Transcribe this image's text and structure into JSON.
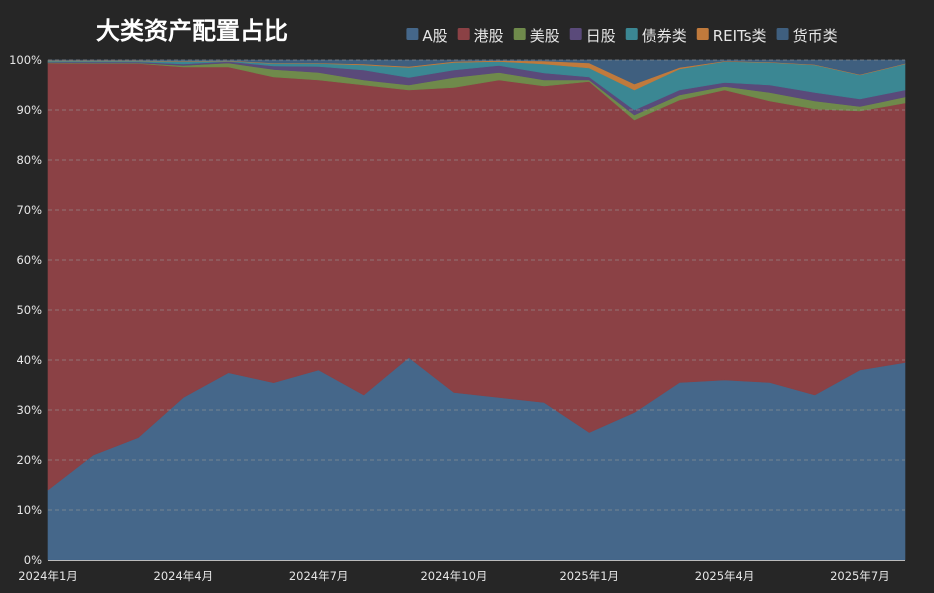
{
  "chart_data": {
    "type": "area",
    "stacked": true,
    "normalized": true,
    "title": "大类资产配置占比",
    "x": [
      "2024-01",
      "2024-02",
      "2024-03",
      "2024-04",
      "2024-05",
      "2024-06",
      "2024-07",
      "2024-08",
      "2024-09",
      "2024-10",
      "2024-11",
      "2024-12",
      "2025-01",
      "2025-02",
      "2025-03",
      "2025-04",
      "2025-05",
      "2025-06",
      "2025-07",
      "2025-08"
    ],
    "x_tick_labels": [
      {
        "x": "2024-01",
        "label": "2024年1月"
      },
      {
        "x": "2024-04",
        "label": "2024年4月"
      },
      {
        "x": "2024-07",
        "label": "2024年7月"
      },
      {
        "x": "2024-10",
        "label": "2024年10月"
      },
      {
        "x": "2025-01",
        "label": "2025年1月"
      },
      {
        "x": "2025-04",
        "label": "2025年4月"
      },
      {
        "x": "2025-07",
        "label": "2025年7月"
      }
    ],
    "y_ticks": [
      "0%",
      "10%",
      "20%",
      "30%",
      "40%",
      "50%",
      "60%",
      "70%",
      "80%",
      "90%",
      "100%"
    ],
    "ylim": [
      0,
      100
    ],
    "grid": true,
    "legend_position": "top",
    "series": [
      {
        "name": "A股",
        "color": "#45678a",
        "values": [
          14,
          21,
          24.5,
          32.5,
          37.5,
          35.5,
          38,
          33,
          40.5,
          33.5,
          32.5,
          31.5,
          25.5,
          29.5,
          35.5,
          36,
          35.5,
          33,
          38,
          39.5
        ]
      },
      {
        "name": "港股",
        "color": "#8b4145",
        "values": [
          85.4,
          78.4,
          74.9,
          66.1,
          61.2,
          61.2,
          58,
          62,
          53.5,
          61,
          63.5,
          63.3,
          70.2,
          58.5,
          56.5,
          58,
          56.3,
          57.2,
          51.8,
          51.9
        ]
      },
      {
        "name": "美股",
        "color": "#6f8a4b",
        "values": [
          0.1,
          0.1,
          0.1,
          0.3,
          0.8,
          1.5,
          1.5,
          1,
          1,
          2,
          1.5,
          1.2,
          0.3,
          1,
          1,
          0.7,
          1.7,
          1.6,
          0.9,
          1.2
        ]
      },
      {
        "name": "日股",
        "color": "#5a4a7a",
        "values": [
          0.1,
          0.2,
          0.2,
          0.3,
          0.3,
          0.7,
          1.2,
          2,
          1.5,
          1.5,
          1.4,
          1.4,
          0.6,
          1,
          1,
          0.8,
          1.5,
          1.7,
          1.5,
          1.4
        ]
      },
      {
        "name": "债券类",
        "color": "#3b8793",
        "values": [
          0.2,
          0.2,
          0.2,
          0.5,
          0.1,
          0.5,
          0.6,
          1,
          2,
          1.5,
          0.8,
          1.8,
          1.8,
          4,
          4.2,
          4.2,
          4.5,
          5.5,
          4.8,
          5.2
        ]
      },
      {
        "name": "REITs类",
        "color": "#c07a3c",
        "values": [
          0.1,
          0.1,
          0.1,
          0.1,
          0.1,
          0.1,
          0.1,
          0.2,
          0.2,
          0.2,
          0.2,
          0.6,
          1,
          1.2,
          0.3,
          0.1,
          0.1,
          0.1,
          0.1,
          0.1
        ]
      },
      {
        "name": "货币类",
        "color": "#3f5f7f",
        "values": [
          0.1,
          0.1,
          0.1,
          0.2,
          0.1,
          0.6,
          0.6,
          0.8,
          1.3,
          0.3,
          0.1,
          0.2,
          0.6,
          4.8,
          1.5,
          0.2,
          0.4,
          0.9,
          2.9,
          0.7
        ]
      }
    ]
  }
}
